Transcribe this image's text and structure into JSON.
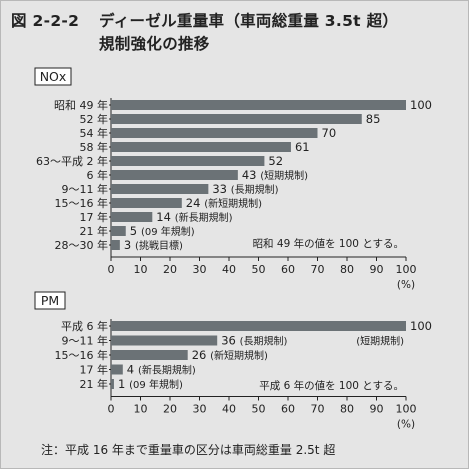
{
  "figure": {
    "number": "図 2-2-2",
    "title_line1": "ディーゼル重量車（車両総重量 3.5t 超）",
    "title_line2": "規制強化の推移"
  },
  "chart_data": [
    {
      "type": "bar",
      "orientation": "horizontal",
      "panel_label": "NOx",
      "categories": [
        "昭和 49 年",
        "52 年",
        "54 年",
        "58 年",
        "63～平成 2 年",
        "6 年",
        "9～11 年",
        "15～16 年",
        "17 年",
        "21 年",
        "28～30 年"
      ],
      "values": [
        100,
        85,
        70,
        61,
        52,
        43,
        33,
        24,
        14,
        5,
        3
      ],
      "bar_annotations": [
        "",
        "",
        "",
        "",
        "",
        "(短期規制)",
        "(長期規制)",
        "(新短期規制)",
        "(新長期規制)",
        "(09 年規制)",
        "(挑戦目標)"
      ],
      "xlim": [
        0,
        100
      ],
      "xticks": [
        0,
        10,
        20,
        30,
        40,
        50,
        60,
        70,
        80,
        90,
        100
      ],
      "xunit": "(%)",
      "note": "昭和 49 年の値を 100 とする。",
      "grid": false
    },
    {
      "type": "bar",
      "orientation": "horizontal",
      "panel_label": "PM",
      "categories": [
        "平成 6 年",
        "9～11 年",
        "15～16 年",
        "17 年",
        "21 年"
      ],
      "values": [
        100,
        36,
        26,
        4,
        1
      ],
      "bar_annotations": [
        "(短期規制)",
        "(長期規制)",
        "(新短期規制)",
        "(新長期規制)",
        "(09 年規制)"
      ],
      "xlim": [
        0,
        100
      ],
      "xticks": [
        0,
        10,
        20,
        30,
        40,
        50,
        60,
        70,
        80,
        90,
        100
      ],
      "xunit": "(%)",
      "note": "平成 6 年の値を 100 とする。",
      "grid": false
    }
  ],
  "footnote": "注：平成 16 年まで重量車の区分は車両総重量 2.5t 超",
  "colors": {
    "bar": "#6b7276",
    "background": "#e5e5e5",
    "panel_box": "#ffffff"
  }
}
